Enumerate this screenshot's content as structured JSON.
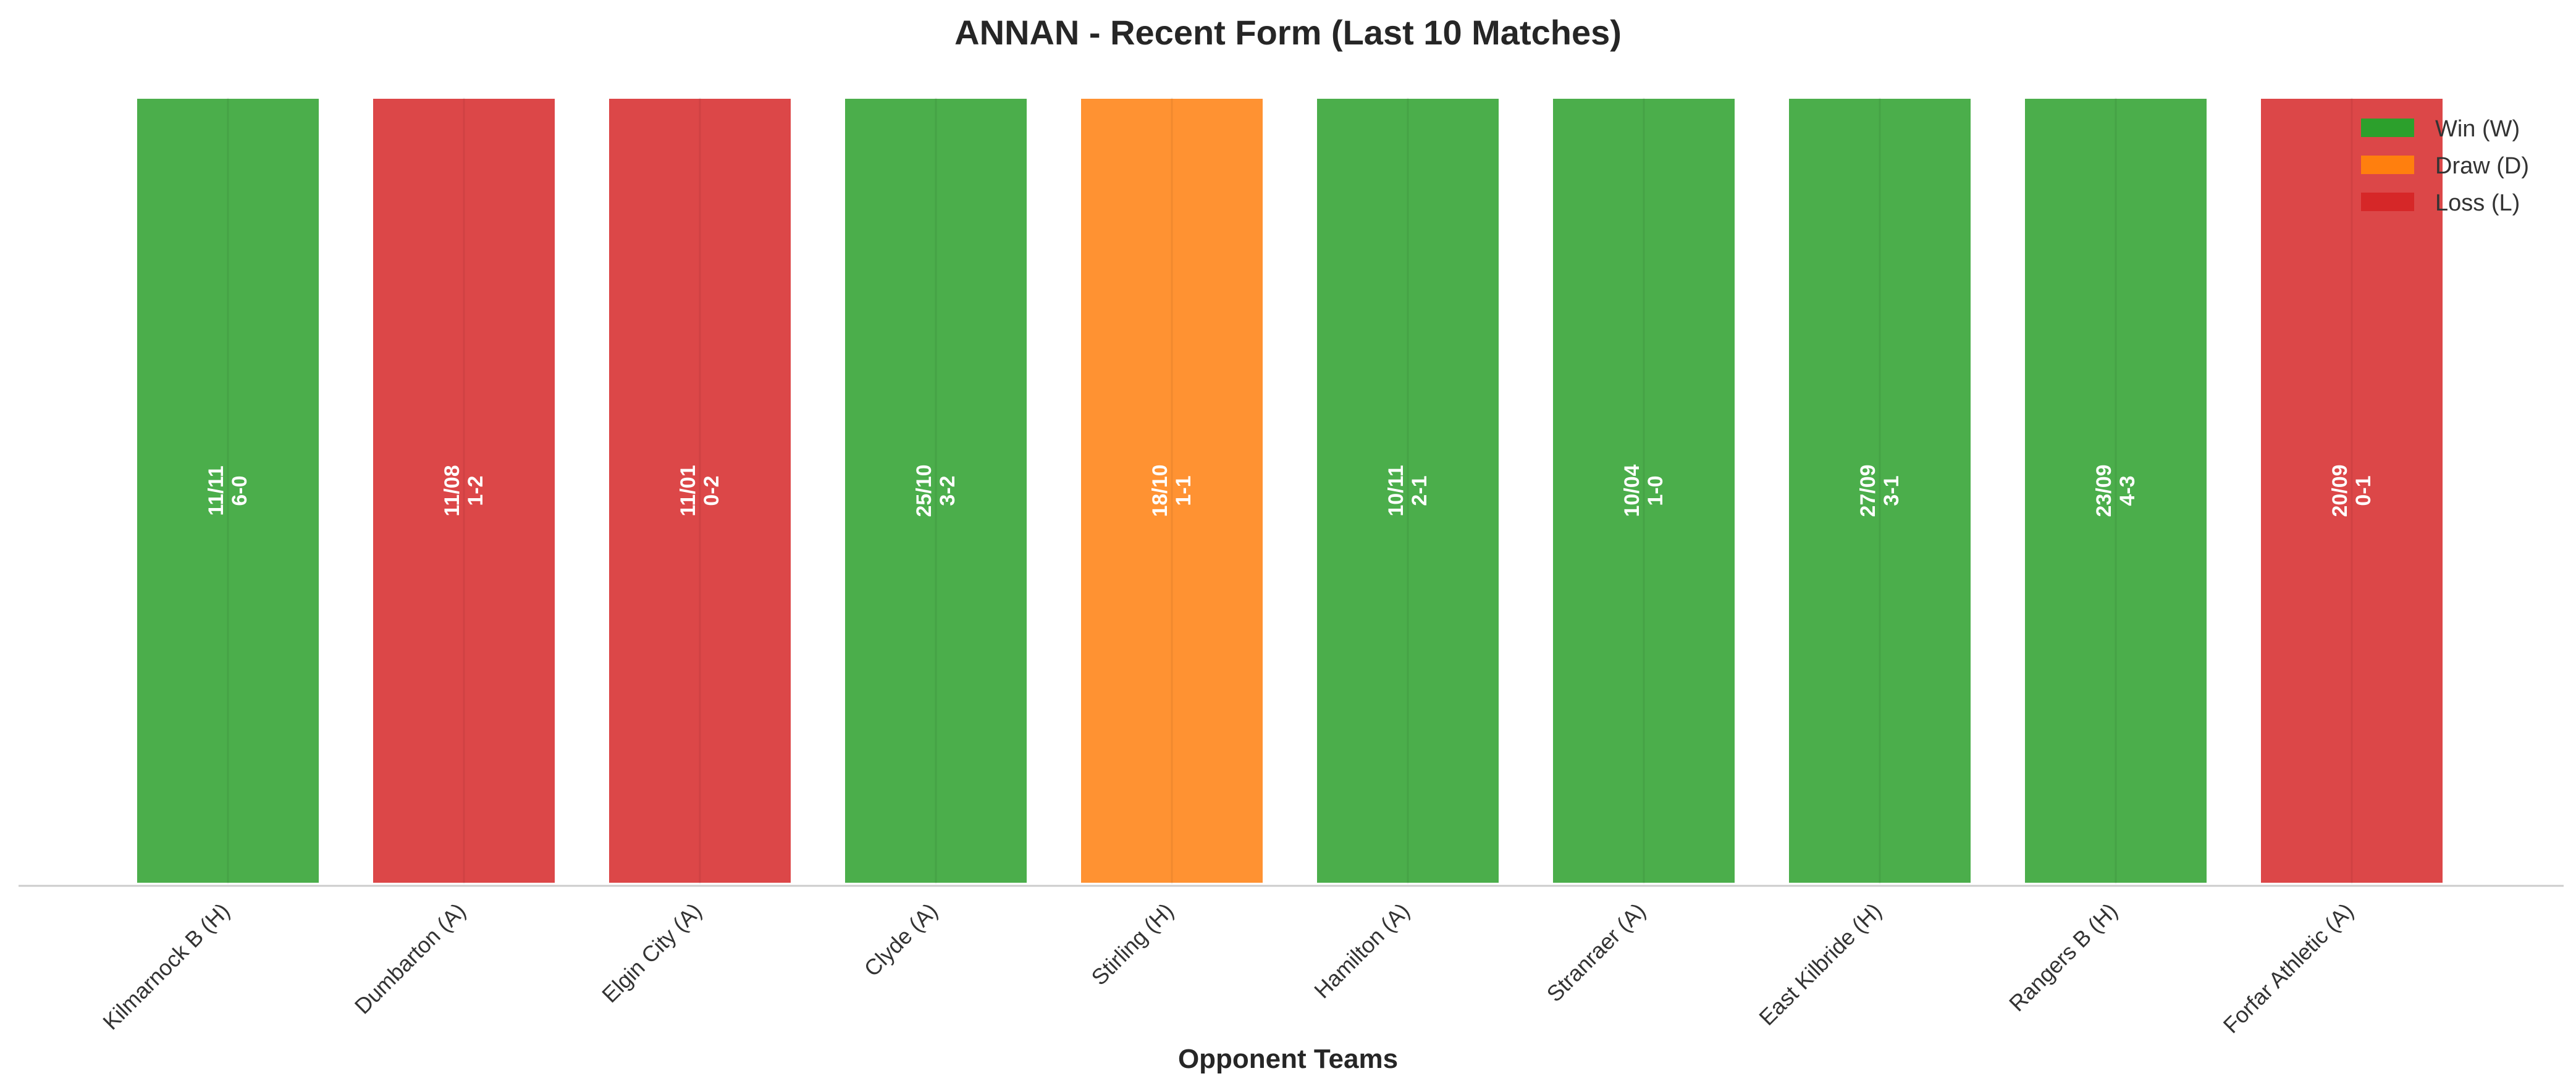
{
  "chart_data": {
    "type": "bar",
    "title": "ANNAN - Recent Form (Last 10 Matches)",
    "xlabel": "Opponent Teams",
    "ylabel": "",
    "ylim": [
      0,
      1
    ],
    "grid": false,
    "legend_placement": "top-right",
    "legend": [
      {
        "key": "W",
        "label": "Win (W)",
        "color": "#2ca02c"
      },
      {
        "key": "D",
        "label": "Draw (D)",
        "color": "#ff7f0e"
      },
      {
        "key": "L",
        "label": "Loss (L)",
        "color": "#d62728"
      }
    ],
    "bars": [
      {
        "opponent": "Kilmarnock B (H)",
        "date": "11/11",
        "score": "6-0",
        "result": "W",
        "value": 1
      },
      {
        "opponent": "Dumbarton (A)",
        "date": "11/08",
        "score": "1-2",
        "result": "L",
        "value": 1
      },
      {
        "opponent": "Elgin City (A)",
        "date": "11/01",
        "score": "0-2",
        "result": "L",
        "value": 1
      },
      {
        "opponent": "Clyde (A)",
        "date": "25/10",
        "score": "3-2",
        "result": "W",
        "value": 1
      },
      {
        "opponent": "Stirling (H)",
        "date": "18/10",
        "score": "1-1",
        "result": "D",
        "value": 1
      },
      {
        "opponent": "Hamilton (A)",
        "date": "10/11",
        "score": "2-1",
        "result": "W",
        "value": 1
      },
      {
        "opponent": "Stranraer (A)",
        "date": "10/04",
        "score": "1-0",
        "result": "W",
        "value": 1
      },
      {
        "opponent": "East Kilbride (H)",
        "date": "27/09",
        "score": "3-1",
        "result": "W",
        "value": 1
      },
      {
        "opponent": "Rangers B (H)",
        "date": "23/09",
        "score": "4-3",
        "result": "W",
        "value": 1
      },
      {
        "opponent": "Forfar Athletic (A)",
        "date": "20/09",
        "score": "0-1",
        "result": "L",
        "value": 1
      }
    ]
  }
}
